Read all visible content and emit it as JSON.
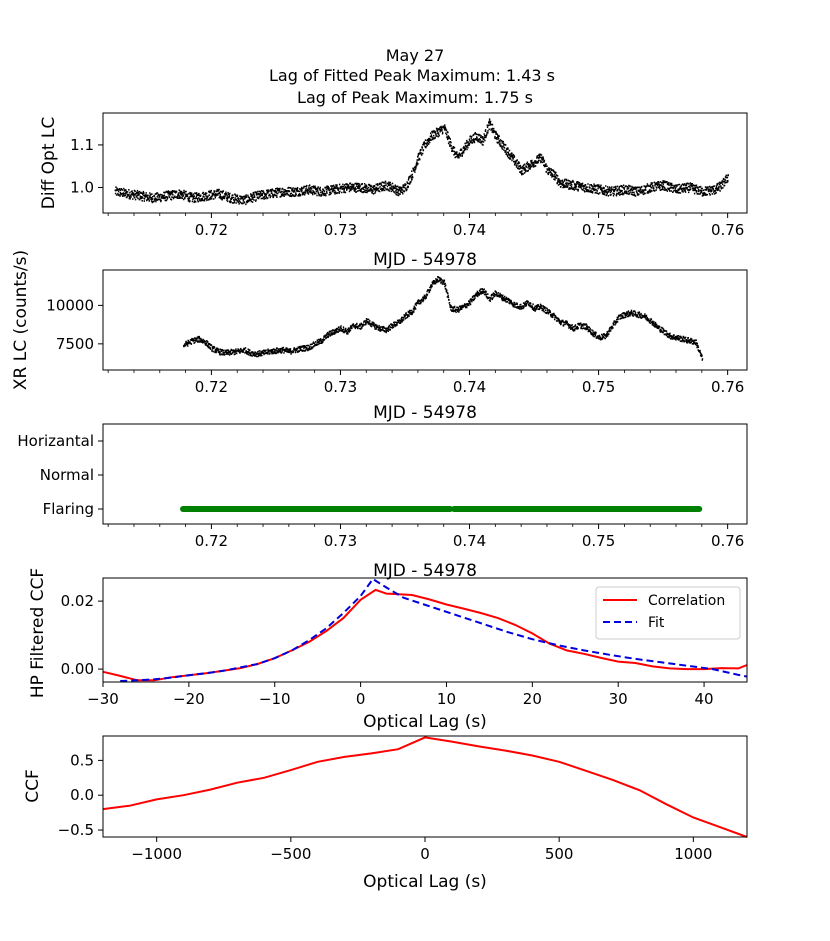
{
  "figure": {
    "title_lines": [
      "May 27",
      "Lag of Fitted Peak Maximum: 1.43 s",
      "Lag of Peak Maximum: 1.75 s"
    ]
  },
  "chart_data": [
    {
      "id": "opt",
      "type": "scatter",
      "ylabel": "Diff Opt LC",
      "xlabel": "MJD - 54978",
      "xlim": [
        0.7116,
        0.7615
      ],
      "ylim": [
        0.94,
        1.175
      ],
      "xticks": [
        0.72,
        0.73,
        0.74,
        0.75,
        0.76
      ],
      "xtick_labels": [
        "0.72",
        "0.73",
        "0.74",
        "0.75",
        "0.76"
      ],
      "yticks": [
        1.0,
        1.1
      ],
      "ytick_labels": [
        "1.0",
        "1.1"
      ],
      "series": [
        {
          "name": "optical",
          "color": "#000000",
          "x": [
            0.7125,
            0.7135,
            0.7145,
            0.7155,
            0.7165,
            0.7175,
            0.7185,
            0.7195,
            0.7205,
            0.7215,
            0.7225,
            0.7235,
            0.7245,
            0.7255,
            0.7265,
            0.7275,
            0.7285,
            0.7295,
            0.7305,
            0.7315,
            0.7325,
            0.7335,
            0.734,
            0.7345,
            0.735,
            0.7355,
            0.736,
            0.7365,
            0.737,
            0.7375,
            0.738,
            0.7385,
            0.739,
            0.7395,
            0.74,
            0.7405,
            0.741,
            0.7415,
            0.742,
            0.7425,
            0.743,
            0.7435,
            0.744,
            0.7445,
            0.745,
            0.7455,
            0.746,
            0.7465,
            0.747,
            0.748,
            0.749,
            0.75,
            0.751,
            0.752,
            0.753,
            0.754,
            0.755,
            0.756,
            0.757,
            0.758,
            0.759,
            0.7595,
            0.76
          ],
          "y": [
            0.99,
            0.985,
            0.98,
            0.975,
            0.98,
            0.985,
            0.975,
            0.98,
            0.985,
            0.975,
            0.97,
            0.98,
            0.985,
            0.99,
            0.99,
            0.995,
            0.99,
            0.995,
            1.0,
            1.0,
            0.995,
            1.005,
            1.0,
            0.99,
            1.0,
            1.03,
            1.07,
            1.1,
            1.12,
            1.13,
            1.14,
            1.1,
            1.07,
            1.09,
            1.11,
            1.12,
            1.11,
            1.15,
            1.12,
            1.1,
            1.08,
            1.06,
            1.04,
            1.05,
            1.06,
            1.07,
            1.04,
            1.03,
            1.01,
            1.005,
            1.0,
            0.995,
            0.99,
            0.995,
            0.99,
            1.0,
            1.005,
            0.995,
            1.0,
            0.99,
            0.995,
            1.005,
            1.025
          ]
        }
      ]
    },
    {
      "id": "xr",
      "type": "scatter",
      "ylabel": "XR LC (counts/s)",
      "xlabel": "MJD - 54978",
      "xlim": [
        0.7116,
        0.7615
      ],
      "ylim": [
        5800,
        12300
      ],
      "xticks": [
        0.72,
        0.73,
        0.74,
        0.75,
        0.76
      ],
      "xtick_labels": [
        "0.72",
        "0.73",
        "0.74",
        "0.75",
        "0.76"
      ],
      "yticks": [
        7500,
        10000
      ],
      "ytick_labels": [
        "7500",
        "10000"
      ],
      "series": [
        {
          "name": "xray",
          "color": "#000000",
          "x": [
            0.7178,
            0.7185,
            0.719,
            0.7195,
            0.72,
            0.7205,
            0.721,
            0.7215,
            0.722,
            0.7225,
            0.723,
            0.7235,
            0.724,
            0.7245,
            0.725,
            0.7255,
            0.726,
            0.7265,
            0.727,
            0.7275,
            0.728,
            0.7285,
            0.729,
            0.7295,
            0.73,
            0.7305,
            0.731,
            0.7315,
            0.732,
            0.7325,
            0.733,
            0.7335,
            0.734,
            0.7345,
            0.735,
            0.7355,
            0.736,
            0.7365,
            0.737,
            0.7375,
            0.738,
            0.7385,
            0.739,
            0.7395,
            0.74,
            0.7405,
            0.741,
            0.7415,
            0.742,
            0.7425,
            0.743,
            0.7435,
            0.744,
            0.7445,
            0.745,
            0.7455,
            0.746,
            0.7465,
            0.747,
            0.7475,
            0.748,
            0.7485,
            0.749,
            0.7495,
            0.75,
            0.7505,
            0.751,
            0.7515,
            0.752,
            0.7525,
            0.753,
            0.7535,
            0.754,
            0.7545,
            0.755,
            0.7555,
            0.756,
            0.7565,
            0.757,
            0.7575,
            0.758
          ],
          "y": [
            7400,
            7700,
            7800,
            7600,
            7200,
            7000,
            6900,
            6950,
            7000,
            7100,
            6900,
            6850,
            6900,
            7000,
            7050,
            7100,
            7000,
            7100,
            7200,
            7250,
            7500,
            7700,
            8100,
            8300,
            8500,
            8300,
            8700,
            8600,
            9000,
            8700,
            8500,
            8400,
            8700,
            8900,
            9300,
            9600,
            10200,
            10500,
            11300,
            11700,
            11500,
            9800,
            9700,
            9900,
            10200,
            10700,
            11000,
            10400,
            10800,
            10500,
            10300,
            10000,
            9900,
            10200,
            9800,
            9900,
            9600,
            9300,
            8900,
            8800,
            8500,
            8700,
            8600,
            8200,
            7900,
            8000,
            8600,
            9200,
            9400,
            9500,
            9400,
            9300,
            9000,
            8600,
            8300,
            8000,
            7900,
            7800,
            7700,
            7600,
            6500
          ]
        }
      ]
    },
    {
      "id": "state",
      "type": "scatter",
      "xlabel": "MJD - 54978",
      "xlim": [
        0.7116,
        0.7615
      ],
      "xticks": [
        0.72,
        0.73,
        0.74,
        0.75,
        0.76
      ],
      "xtick_labels": [
        "0.72",
        "0.73",
        "0.74",
        "0.75",
        "0.76"
      ],
      "categories": [
        "Horizantal",
        "Normal",
        "Flaring"
      ],
      "series": [
        {
          "name": "state",
          "color": "#008000",
          "category": "Flaring",
          "segments": [
            [
              0.7178,
              0.7385
            ],
            [
              0.7388,
              0.7578
            ]
          ]
        }
      ]
    },
    {
      "id": "hpccf",
      "type": "line",
      "ylabel": "HP Filtered CCF",
      "xlabel": "Optical Lag (s)",
      "xlim": [
        -30,
        45
      ],
      "ylim": [
        -0.0038,
        0.0268
      ],
      "xticks": [
        -30,
        -20,
        -10,
        0,
        10,
        20,
        30,
        40
      ],
      "xtick_labels": [
        "−30",
        "−20",
        "−10",
        "0",
        "10",
        "20",
        "30",
        "40"
      ],
      "yticks": [
        0.0,
        0.02
      ],
      "ytick_labels": [
        "0.00",
        "0.02"
      ],
      "legend_position": "top-right",
      "series": [
        {
          "name": "Correlation",
          "color": "#ff0000",
          "style": "solid",
          "x": [
            -30,
            -28,
            -26,
            -24,
            -22,
            -20,
            -18,
            -16,
            -14,
            -12,
            -10,
            -8,
            -6,
            -4,
            -2,
            0,
            1.75,
            3,
            4,
            6,
            8,
            10,
            12,
            14,
            16,
            18,
            20,
            22,
            24,
            26,
            28,
            30,
            32,
            34,
            36,
            38,
            40,
            42,
            44,
            45
          ],
          "y": [
            -0.0008,
            -0.002,
            -0.0033,
            -0.0033,
            -0.0024,
            -0.0018,
            -0.0012,
            -0.0005,
            0.0003,
            0.0015,
            0.0032,
            0.0055,
            0.008,
            0.0112,
            0.015,
            0.0204,
            0.0233,
            0.0222,
            0.0221,
            0.0218,
            0.0205,
            0.019,
            0.0178,
            0.0165,
            0.015,
            0.013,
            0.0105,
            0.0075,
            0.0055,
            0.0045,
            0.0033,
            0.0022,
            0.0018,
            0.0008,
            0.0002,
            0.0,
            0.0,
            0.0003,
            0.0002,
            0.0012
          ]
        },
        {
          "name": "Fit",
          "color": "#0000dd",
          "style": "dashed",
          "x": [
            -28,
            -26,
            -24,
            -22,
            -20,
            -18,
            -16,
            -14,
            -12,
            -10,
            -8,
            -6,
            -4,
            -2,
            0,
            1.43,
            3,
            5,
            8,
            11,
            14,
            17,
            20,
            23,
            26,
            29,
            32,
            35,
            38,
            41,
            44,
            45
          ],
          "y": [
            -0.0035,
            -0.0033,
            -0.003,
            -0.0025,
            -0.0018,
            -0.0012,
            -0.0005,
            0.0005,
            0.0015,
            0.0032,
            0.0055,
            0.0085,
            0.012,
            0.0165,
            0.0215,
            0.0265,
            0.024,
            0.021,
            0.0185,
            0.016,
            0.0135,
            0.011,
            0.0088,
            0.007,
            0.0055,
            0.0042,
            0.003,
            0.002,
            0.001,
            0.0,
            -0.0017,
            -0.0022
          ]
        }
      ]
    },
    {
      "id": "ccf",
      "type": "line",
      "ylabel": "CCF",
      "xlabel": "Optical Lag (s)",
      "xlim": [
        -1200,
        1200
      ],
      "ylim": [
        -0.6,
        0.85
      ],
      "xticks": [
        -1000,
        -500,
        0,
        500,
        1000
      ],
      "xtick_labels": [
        "−1000",
        "−500",
        "0",
        "500",
        "1000"
      ],
      "yticks": [
        -0.5,
        0.0,
        0.5
      ],
      "ytick_labels": [
        "−0.5",
        "0.0",
        "0.5"
      ],
      "series": [
        {
          "name": "CCF",
          "color": "#ff0000",
          "x": [
            -1200,
            -1100,
            -1000,
            -900,
            -800,
            -700,
            -600,
            -500,
            -400,
            -300,
            -200,
            -100,
            0,
            100,
            200,
            300,
            400,
            500,
            600,
            700,
            800,
            900,
            1000,
            1100,
            1200
          ],
          "y": [
            -0.2,
            -0.15,
            -0.06,
            0.0,
            0.08,
            0.18,
            0.25,
            0.36,
            0.48,
            0.55,
            0.6,
            0.66,
            0.83,
            0.77,
            0.7,
            0.64,
            0.57,
            0.48,
            0.35,
            0.22,
            0.07,
            -0.13,
            -0.32,
            -0.46,
            -0.6
          ]
        }
      ]
    }
  ]
}
